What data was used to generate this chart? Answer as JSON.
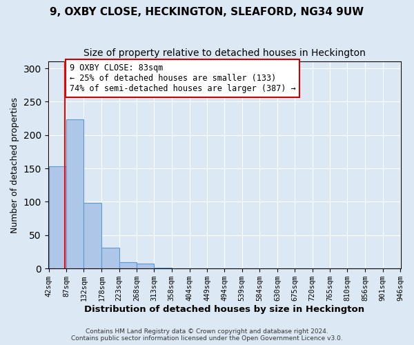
{
  "title1": "9, OXBY CLOSE, HECKINGTON, SLEAFORD, NG34 9UW",
  "title2": "Size of property relative to detached houses in Heckington",
  "xlabel": "Distribution of detached houses by size in Heckington",
  "ylabel": "Number of detached properties",
  "bin_labels": [
    "42sqm",
    "87sqm",
    "132sqm",
    "178sqm",
    "223sqm",
    "268sqm",
    "313sqm",
    "358sqm",
    "404sqm",
    "449sqm",
    "494sqm",
    "539sqm",
    "584sqm",
    "630sqm",
    "675sqm",
    "720sqm",
    "765sqm",
    "810sqm",
    "856sqm",
    "901sqm",
    "946sqm"
  ],
  "bar_heights": [
    153,
    224,
    98,
    31,
    10,
    7,
    1,
    0,
    0,
    0,
    0,
    0,
    0,
    0,
    0,
    0,
    0,
    0,
    0,
    0
  ],
  "bar_color": "#aec6e8",
  "bar_edge_color": "#5b9bd5",
  "background_color": "#dce9f5",
  "red_line_x": 83,
  "bin_edges_numeric": [
    42,
    87,
    132,
    178,
    223,
    268,
    313,
    358,
    404,
    449,
    494,
    539,
    584,
    630,
    675,
    720,
    765,
    810,
    856,
    901,
    946
  ],
  "annotation_title": "9 OXBY CLOSE: 83sqm",
  "annotation_line1": "← 25% of detached houses are smaller (133)",
  "annotation_line2": "74% of semi-detached houses are larger (387) →",
  "annotation_box_color": "#ffffff",
  "annotation_box_edge": "#cc0000",
  "ylim": [
    0,
    310
  ],
  "yticks": [
    0,
    50,
    100,
    150,
    200,
    250,
    300
  ],
  "footer1": "Contains HM Land Registry data © Crown copyright and database right 2024.",
  "footer2": "Contains public sector information licensed under the Open Government Licence v3.0.",
  "title_fontsize": 11,
  "subtitle_fontsize": 10
}
